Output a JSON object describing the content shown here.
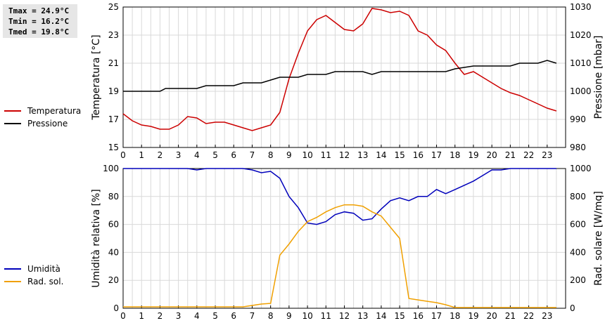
{
  "stats": {
    "tmax": "Tmax = 24.9°C",
    "tmin": "Tmin = 16.2°C",
    "tmed": "Tmed = 19.8°C"
  },
  "chart_data": [
    {
      "type": "line",
      "x_ticks": [
        "0",
        "1",
        "2",
        "3",
        "4",
        "5",
        "6",
        "7",
        "8",
        "9",
        "10",
        "11",
        "12",
        "13",
        "14",
        "15",
        "16",
        "17",
        "18",
        "19",
        "20",
        "21",
        "22",
        "23"
      ],
      "xlim": [
        0,
        24
      ],
      "ylabel_left": "Temperatura [°C]",
      "ylabel_right": "Pressione [mbar]",
      "ylim_left": [
        15,
        25
      ],
      "ylim_right": [
        980,
        1030
      ],
      "yticks_left": [
        15,
        17,
        19,
        21,
        23,
        25
      ],
      "yticks_right": [
        980,
        990,
        1000,
        1010,
        1020,
        1030
      ],
      "grid": true,
      "legend_position": "left",
      "series": [
        {
          "name": "Temperatura",
          "axis": "left",
          "color": "#cc0000",
          "x": [
            0,
            0.5,
            1,
            1.5,
            2,
            2.5,
            3,
            3.5,
            4,
            4.5,
            5,
            5.5,
            6,
            6.5,
            7,
            7.5,
            8,
            8.5,
            9,
            9.5,
            10,
            10.5,
            11,
            11.5,
            12,
            12.5,
            13,
            13.5,
            14,
            14.5,
            15,
            15.5,
            16,
            16.5,
            17,
            17.5,
            18,
            18.5,
            19,
            19.5,
            20,
            20.5,
            21,
            21.5,
            22,
            22.5,
            23,
            23.5
          ],
          "y": [
            17.4,
            16.9,
            16.6,
            16.5,
            16.3,
            16.3,
            16.6,
            17.2,
            17.1,
            16.7,
            16.8,
            16.8,
            16.6,
            16.4,
            16.2,
            16.4,
            16.6,
            17.5,
            19.9,
            21.7,
            23.3,
            24.1,
            24.4,
            23.9,
            23.4,
            23.3,
            23.8,
            24.9,
            24.8,
            24.6,
            24.7,
            24.4,
            23.3,
            23.0,
            22.3,
            21.9,
            21.0,
            20.2,
            20.4,
            20.0,
            19.6,
            19.2,
            18.9,
            18.7,
            18.4,
            18.1,
            17.8,
            17.6
          ]
        },
        {
          "name": "Pressione",
          "axis": "right",
          "color": "#000000",
          "x": [
            0,
            1,
            2,
            2.3,
            4,
            4.5,
            6,
            6.5,
            7,
            7.5,
            8,
            8.5,
            9.5,
            10,
            11,
            11.5,
            13,
            13.5,
            14,
            15,
            16,
            17,
            17.5,
            18,
            19,
            20,
            21,
            21.5,
            22,
            22.5,
            23,
            23.5
          ],
          "y": [
            1000,
            1000,
            1000,
            1001,
            1001,
            1002,
            1002,
            1003,
            1003,
            1003,
            1004,
            1005,
            1005,
            1006,
            1006,
            1007,
            1007,
            1006,
            1007,
            1007,
            1007,
            1007,
            1007,
            1008,
            1009,
            1009,
            1009,
            1010,
            1010,
            1010,
            1011,
            1010
          ]
        }
      ]
    },
    {
      "type": "line",
      "x_ticks": [
        "0",
        "1",
        "2",
        "3",
        "4",
        "5",
        "6",
        "7",
        "8",
        "9",
        "10",
        "11",
        "12",
        "13",
        "14",
        "15",
        "16",
        "17",
        "18",
        "19",
        "20",
        "21",
        "22",
        "23"
      ],
      "xlim": [
        0,
        24
      ],
      "ylabel_left": "Umidità relativa [%]",
      "ylabel_right": "Rad. solare [W/mq]",
      "ylim_left": [
        0,
        100
      ],
      "ylim_right": [
        0,
        1000
      ],
      "yticks_left": [
        0,
        20,
        40,
        60,
        80,
        100
      ],
      "yticks_right": [
        0,
        200,
        400,
        600,
        800,
        1000
      ],
      "grid": true,
      "legend_position": "left",
      "series": [
        {
          "name": "Umidità",
          "axis": "left",
          "color": "#0000bb",
          "x": [
            0,
            1,
            2,
            3,
            3.5,
            4,
            4.5,
            5,
            6,
            6.5,
            7,
            7.5,
            8,
            8.5,
            9,
            9.5,
            10,
            10.5,
            11,
            11.5,
            12,
            12.5,
            13,
            13.5,
            14,
            14.5,
            15,
            15.5,
            16,
            16.5,
            17,
            17.5,
            18,
            18.5,
            19,
            19.5,
            20,
            20.5,
            21,
            21.5,
            22,
            23,
            23.5
          ],
          "y": [
            100,
            100,
            100,
            100,
            100,
            99,
            100,
            100,
            100,
            100,
            99,
            97,
            98,
            93,
            80,
            72,
            61,
            60,
            62,
            67,
            69,
            68,
            63,
            64,
            71,
            77,
            79,
            77,
            80,
            80,
            85,
            82,
            85,
            88,
            91,
            95,
            99,
            99,
            100,
            100,
            100,
            100,
            100
          ]
        },
        {
          "name": "Rad. sol.",
          "axis": "right",
          "color": "#f0a000",
          "x": [
            0,
            1,
            2,
            3,
            4,
            5,
            6,
            6.5,
            7,
            7.5,
            8,
            8.5,
            9,
            9.5,
            10,
            10.5,
            11,
            11.5,
            12,
            12.5,
            13,
            13.5,
            14,
            14.5,
            15,
            15.5,
            16,
            16.5,
            17,
            17.5,
            18,
            19,
            20,
            21,
            22,
            23,
            23.5
          ],
          "y": [
            10,
            10,
            10,
            10,
            10,
            10,
            10,
            10,
            20,
            30,
            35,
            380,
            460,
            550,
            620,
            650,
            690,
            720,
            740,
            740,
            730,
            690,
            660,
            580,
            500,
            70,
            60,
            50,
            40,
            25,
            5,
            5,
            5,
            5,
            5,
            5,
            5
          ]
        }
      ]
    }
  ]
}
